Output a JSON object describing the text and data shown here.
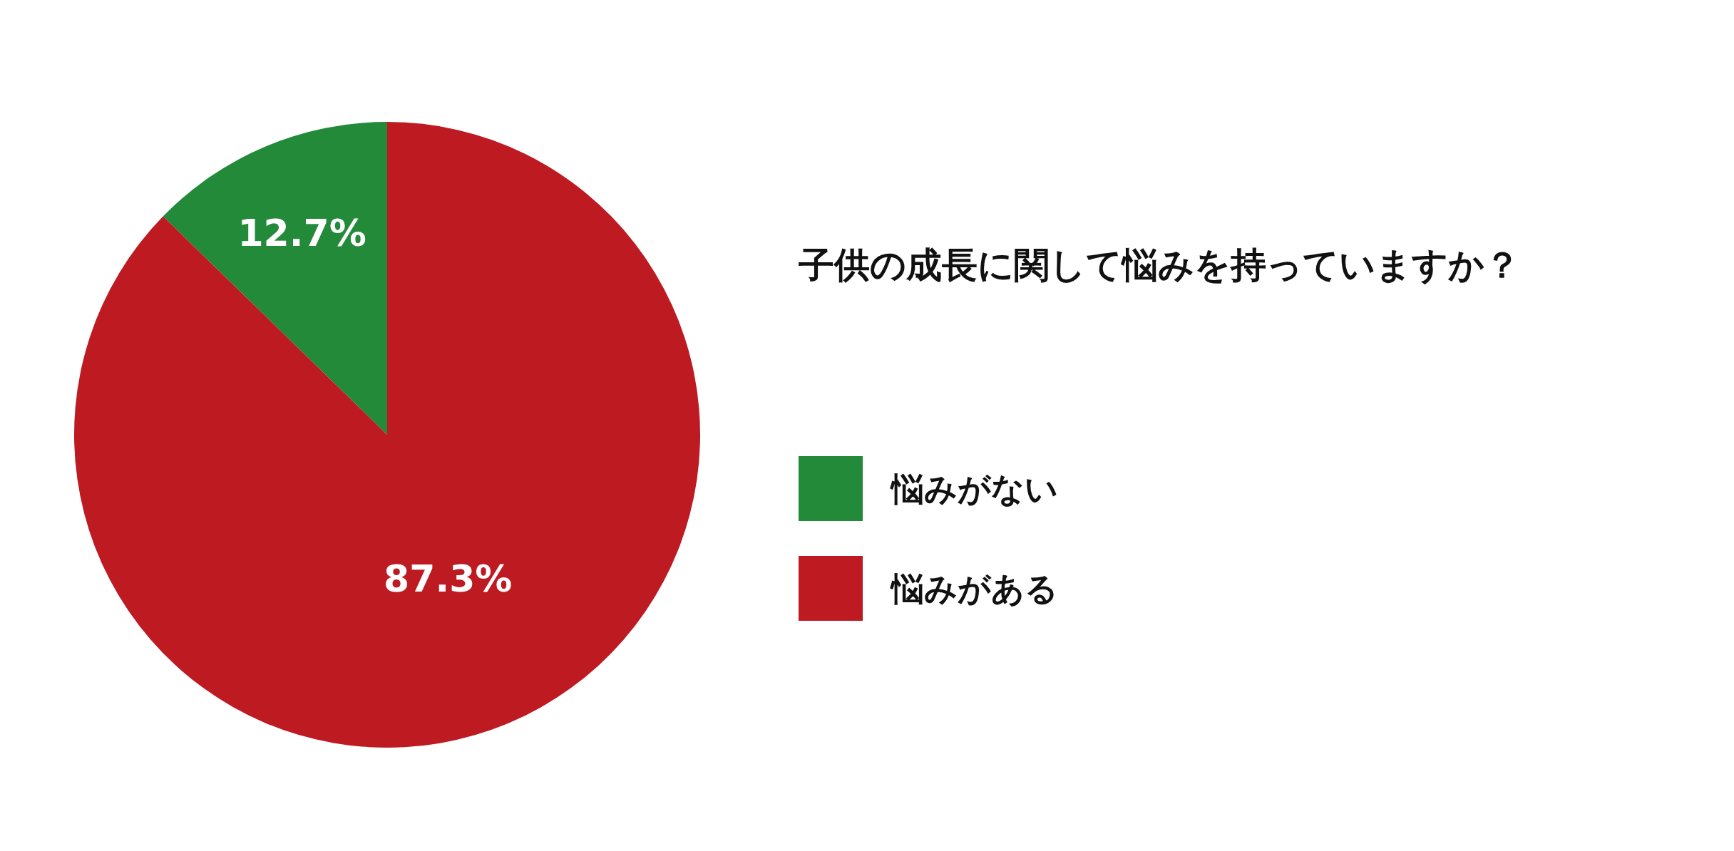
{
  "chart_data": {
    "type": "pie",
    "title": "子供の成長に関して悩みを持っていますか？",
    "categories": [
      "悩みがない",
      "悩みがある"
    ],
    "values": [
      12.7,
      87.3
    ],
    "colors": [
      "#238a3a",
      "#bd1a22"
    ],
    "value_labels": [
      "12.7%",
      "87.3%"
    ],
    "legend": "right"
  }
}
